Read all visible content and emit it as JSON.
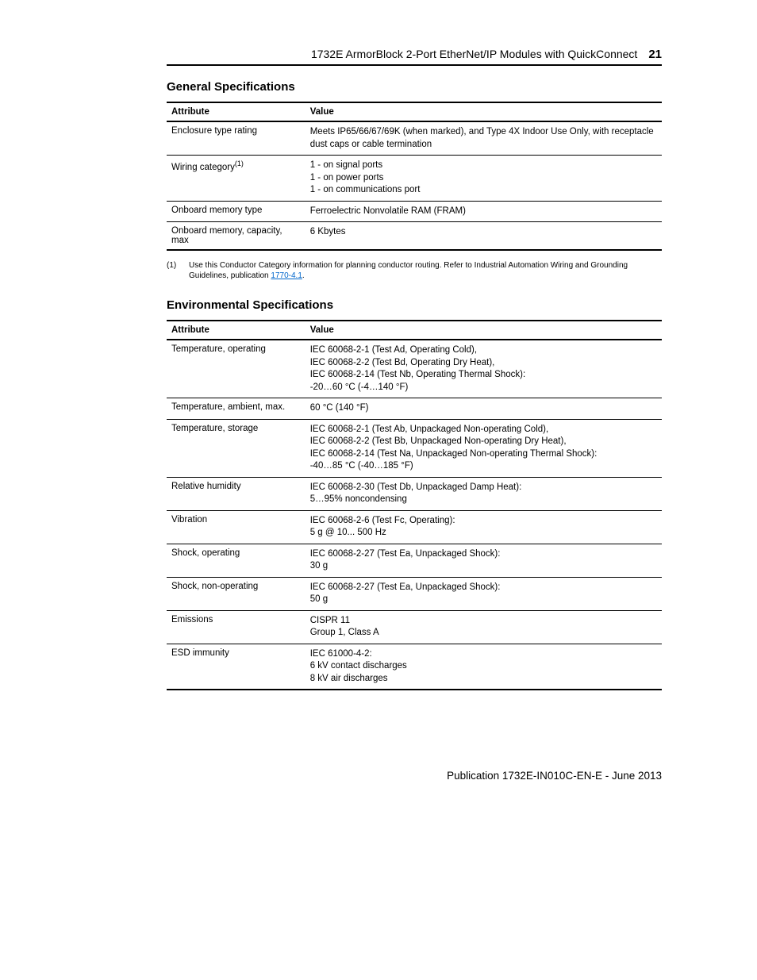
{
  "header": {
    "title": "1732E ArmorBlock 2-Port EtherNet/IP Modules with QuickConnect",
    "page_number": "21"
  },
  "sections": {
    "general": {
      "title": "General Specifications",
      "columns": [
        "Attribute",
        "Value"
      ],
      "rows": [
        {
          "attr": "Enclosure type rating",
          "value_lines": [
            "Meets IP65/66/67/69K (when marked), and Type 4X Indoor Use Only, with receptacle dust caps or cable termination"
          ]
        },
        {
          "attr": "Wiring category",
          "attr_super": "(1)",
          "value_lines": [
            "1 - on signal ports",
            "1 - on power ports",
            "1 - on communications port"
          ]
        },
        {
          "attr": "Onboard memory type",
          "value_lines": [
            "Ferroelectric Nonvolatile RAM (FRAM)"
          ]
        },
        {
          "attr": "Onboard memory, capacity, max",
          "value_lines": [
            "6 Kbytes"
          ]
        }
      ],
      "footnote": {
        "marker": "(1)",
        "text_before": "Use this Conductor Category information for planning conductor routing. Refer to Industrial Automation Wiring and Grounding Guidelines, publication ",
        "link_text": "1770-4.1",
        "text_after": "."
      }
    },
    "environmental": {
      "title": "Environmental Specifications",
      "columns": [
        "Attribute",
        "Value"
      ],
      "rows": [
        {
          "attr": "Temperature, operating",
          "value_lines": [
            "IEC 60068-2-1 (Test Ad, Operating Cold),",
            "IEC 60068-2-2 (Test Bd, Operating Dry Heat),",
            "IEC 60068-2-14 (Test Nb, Operating Thermal Shock):",
            "-20…60 °C (-4…140 °F)"
          ]
        },
        {
          "attr": "Temperature, ambient, max.",
          "value_lines": [
            "60 °C (140 °F)"
          ]
        },
        {
          "attr": "Temperature, storage",
          "value_lines": [
            "IEC 60068-2-1 (Test Ab, Unpackaged Non-operating Cold),",
            "IEC 60068-2-2 (Test Bb, Unpackaged Non-operating Dry Heat),",
            "IEC 60068-2-14 (Test Na, Unpackaged Non-operating Thermal Shock):",
            "-40…85 °C (-40…185 °F)"
          ]
        },
        {
          "attr": "Relative humidity",
          "value_lines": [
            "IEC 60068-2-30 (Test Db, Unpackaged Damp Heat):",
            "5…95% noncondensing"
          ]
        },
        {
          "attr": "Vibration",
          "value_lines": [
            "IEC 60068-2-6 (Test Fc, Operating):",
            "5 g @ 10... 500 Hz"
          ]
        },
        {
          "attr": "Shock, operating",
          "value_lines": [
            "IEC 60068-2-27 (Test Ea, Unpackaged Shock):",
            "30 g"
          ]
        },
        {
          "attr": "Shock, non-operating",
          "value_lines": [
            "IEC 60068-2-27 (Test Ea, Unpackaged Shock):",
            "50 g"
          ]
        },
        {
          "attr": "Emissions",
          "value_lines": [
            "CISPR 11",
            "Group 1, Class A"
          ]
        },
        {
          "attr": "ESD immunity",
          "value_lines": [
            "IEC 61000-4-2:",
            "6 kV contact discharges",
            "8 kV air discharges"
          ]
        }
      ]
    }
  },
  "publication": "Publication 1732E-IN010C-EN-E - June 2013"
}
